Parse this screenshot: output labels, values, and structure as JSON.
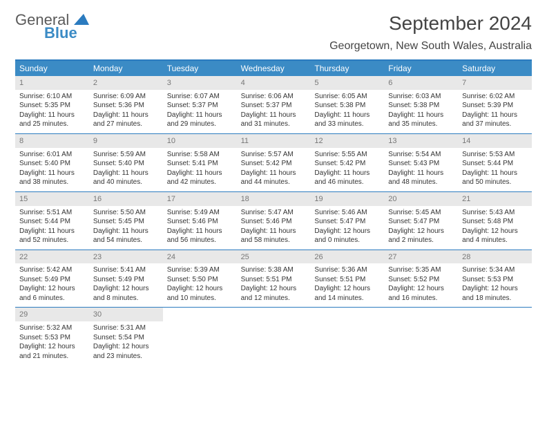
{
  "logo": {
    "word1": "General",
    "word2": "Blue"
  },
  "title": "September 2024",
  "subtitle": "Georgetown, New South Wales, Australia",
  "colors": {
    "header_bg": "#3b8bc5",
    "header_border": "#2b7bbf",
    "daynum_bg": "#e8e8e8",
    "daynum_text": "#777",
    "text": "#333"
  },
  "day_names": [
    "Sunday",
    "Monday",
    "Tuesday",
    "Wednesday",
    "Thursday",
    "Friday",
    "Saturday"
  ],
  "weeks": [
    [
      {
        "n": "1",
        "sr": "Sunrise: 6:10 AM",
        "ss": "Sunset: 5:35 PM",
        "d1": "Daylight: 11 hours",
        "d2": "and 25 minutes."
      },
      {
        "n": "2",
        "sr": "Sunrise: 6:09 AM",
        "ss": "Sunset: 5:36 PM",
        "d1": "Daylight: 11 hours",
        "d2": "and 27 minutes."
      },
      {
        "n": "3",
        "sr": "Sunrise: 6:07 AM",
        "ss": "Sunset: 5:37 PM",
        "d1": "Daylight: 11 hours",
        "d2": "and 29 minutes."
      },
      {
        "n": "4",
        "sr": "Sunrise: 6:06 AM",
        "ss": "Sunset: 5:37 PM",
        "d1": "Daylight: 11 hours",
        "d2": "and 31 minutes."
      },
      {
        "n": "5",
        "sr": "Sunrise: 6:05 AM",
        "ss": "Sunset: 5:38 PM",
        "d1": "Daylight: 11 hours",
        "d2": "and 33 minutes."
      },
      {
        "n": "6",
        "sr": "Sunrise: 6:03 AM",
        "ss": "Sunset: 5:38 PM",
        "d1": "Daylight: 11 hours",
        "d2": "and 35 minutes."
      },
      {
        "n": "7",
        "sr": "Sunrise: 6:02 AM",
        "ss": "Sunset: 5:39 PM",
        "d1": "Daylight: 11 hours",
        "d2": "and 37 minutes."
      }
    ],
    [
      {
        "n": "8",
        "sr": "Sunrise: 6:01 AM",
        "ss": "Sunset: 5:40 PM",
        "d1": "Daylight: 11 hours",
        "d2": "and 38 minutes."
      },
      {
        "n": "9",
        "sr": "Sunrise: 5:59 AM",
        "ss": "Sunset: 5:40 PM",
        "d1": "Daylight: 11 hours",
        "d2": "and 40 minutes."
      },
      {
        "n": "10",
        "sr": "Sunrise: 5:58 AM",
        "ss": "Sunset: 5:41 PM",
        "d1": "Daylight: 11 hours",
        "d2": "and 42 minutes."
      },
      {
        "n": "11",
        "sr": "Sunrise: 5:57 AM",
        "ss": "Sunset: 5:42 PM",
        "d1": "Daylight: 11 hours",
        "d2": "and 44 minutes."
      },
      {
        "n": "12",
        "sr": "Sunrise: 5:55 AM",
        "ss": "Sunset: 5:42 PM",
        "d1": "Daylight: 11 hours",
        "d2": "and 46 minutes."
      },
      {
        "n": "13",
        "sr": "Sunrise: 5:54 AM",
        "ss": "Sunset: 5:43 PM",
        "d1": "Daylight: 11 hours",
        "d2": "and 48 minutes."
      },
      {
        "n": "14",
        "sr": "Sunrise: 5:53 AM",
        "ss": "Sunset: 5:44 PM",
        "d1": "Daylight: 11 hours",
        "d2": "and 50 minutes."
      }
    ],
    [
      {
        "n": "15",
        "sr": "Sunrise: 5:51 AM",
        "ss": "Sunset: 5:44 PM",
        "d1": "Daylight: 11 hours",
        "d2": "and 52 minutes."
      },
      {
        "n": "16",
        "sr": "Sunrise: 5:50 AM",
        "ss": "Sunset: 5:45 PM",
        "d1": "Daylight: 11 hours",
        "d2": "and 54 minutes."
      },
      {
        "n": "17",
        "sr": "Sunrise: 5:49 AM",
        "ss": "Sunset: 5:46 PM",
        "d1": "Daylight: 11 hours",
        "d2": "and 56 minutes."
      },
      {
        "n": "18",
        "sr": "Sunrise: 5:47 AM",
        "ss": "Sunset: 5:46 PM",
        "d1": "Daylight: 11 hours",
        "d2": "and 58 minutes."
      },
      {
        "n": "19",
        "sr": "Sunrise: 5:46 AM",
        "ss": "Sunset: 5:47 PM",
        "d1": "Daylight: 12 hours",
        "d2": "and 0 minutes."
      },
      {
        "n": "20",
        "sr": "Sunrise: 5:45 AM",
        "ss": "Sunset: 5:47 PM",
        "d1": "Daylight: 12 hours",
        "d2": "and 2 minutes."
      },
      {
        "n": "21",
        "sr": "Sunrise: 5:43 AM",
        "ss": "Sunset: 5:48 PM",
        "d1": "Daylight: 12 hours",
        "d2": "and 4 minutes."
      }
    ],
    [
      {
        "n": "22",
        "sr": "Sunrise: 5:42 AM",
        "ss": "Sunset: 5:49 PM",
        "d1": "Daylight: 12 hours",
        "d2": "and 6 minutes."
      },
      {
        "n": "23",
        "sr": "Sunrise: 5:41 AM",
        "ss": "Sunset: 5:49 PM",
        "d1": "Daylight: 12 hours",
        "d2": "and 8 minutes."
      },
      {
        "n": "24",
        "sr": "Sunrise: 5:39 AM",
        "ss": "Sunset: 5:50 PM",
        "d1": "Daylight: 12 hours",
        "d2": "and 10 minutes."
      },
      {
        "n": "25",
        "sr": "Sunrise: 5:38 AM",
        "ss": "Sunset: 5:51 PM",
        "d1": "Daylight: 12 hours",
        "d2": "and 12 minutes."
      },
      {
        "n": "26",
        "sr": "Sunrise: 5:36 AM",
        "ss": "Sunset: 5:51 PM",
        "d1": "Daylight: 12 hours",
        "d2": "and 14 minutes."
      },
      {
        "n": "27",
        "sr": "Sunrise: 5:35 AM",
        "ss": "Sunset: 5:52 PM",
        "d1": "Daylight: 12 hours",
        "d2": "and 16 minutes."
      },
      {
        "n": "28",
        "sr": "Sunrise: 5:34 AM",
        "ss": "Sunset: 5:53 PM",
        "d1": "Daylight: 12 hours",
        "d2": "and 18 minutes."
      }
    ],
    [
      {
        "n": "29",
        "sr": "Sunrise: 5:32 AM",
        "ss": "Sunset: 5:53 PM",
        "d1": "Daylight: 12 hours",
        "d2": "and 21 minutes."
      },
      {
        "n": "30",
        "sr": "Sunrise: 5:31 AM",
        "ss": "Sunset: 5:54 PM",
        "d1": "Daylight: 12 hours",
        "d2": "and 23 minutes."
      },
      null,
      null,
      null,
      null,
      null
    ]
  ]
}
